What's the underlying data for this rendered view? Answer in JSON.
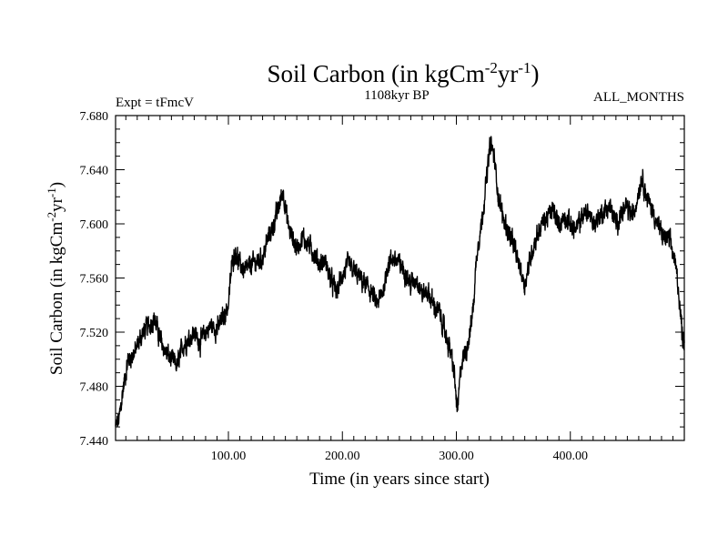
{
  "chart_data": {
    "type": "line",
    "title": "Soil Carbon (in kgCm",
    "title_sup1": "-2",
    "title_mid": "yr",
    "title_sup2": "-1",
    "title_end": ")",
    "subtitle_left": "Expt = tFmcV",
    "subtitle_center": "1108kyr BP",
    "subtitle_right": "ALL_MONTHS",
    "xlabel": "Time (in years since start)",
    "ylabel": "Soil Carbon (in kgCm",
    "ylabel_sup1": "-2",
    "ylabel_mid": "yr",
    "ylabel_sup2": "-1",
    "ylabel_end": ")",
    "xlim": [
      1,
      500
    ],
    "ylim": [
      7.44,
      7.68
    ],
    "xticks": [
      100,
      200,
      300,
      400
    ],
    "xtick_labels": [
      "100.00",
      "200.00",
      "300.00",
      "400.00"
    ],
    "yticks": [
      7.44,
      7.48,
      7.52,
      7.56,
      7.6,
      7.64,
      7.68
    ],
    "ytick_labels": [
      "7.440",
      "7.480",
      "7.520",
      "7.560",
      "7.600",
      "7.640",
      "7.680"
    ],
    "series_color": "#000000",
    "anchors": [
      [
        1,
        7.45
      ],
      [
        4,
        7.455
      ],
      [
        8,
        7.48
      ],
      [
        12,
        7.5
      ],
      [
        18,
        7.505
      ],
      [
        25,
        7.52
      ],
      [
        30,
        7.525
      ],
      [
        35,
        7.53
      ],
      [
        40,
        7.515
      ],
      [
        45,
        7.505
      ],
      [
        50,
        7.5
      ],
      [
        55,
        7.495
      ],
      [
        60,
        7.51
      ],
      [
        65,
        7.515
      ],
      [
        70,
        7.52
      ],
      [
        75,
        7.512
      ],
      [
        80,
        7.52
      ],
      [
        85,
        7.525
      ],
      [
        90,
        7.522
      ],
      [
        95,
        7.53
      ],
      [
        100,
        7.54
      ],
      [
        103,
        7.57
      ],
      [
        106,
        7.58
      ],
      [
        110,
        7.57
      ],
      [
        115,
        7.565
      ],
      [
        120,
        7.57
      ],
      [
        125,
        7.572
      ],
      [
        130,
        7.575
      ],
      [
        135,
        7.59
      ],
      [
        140,
        7.6
      ],
      [
        145,
        7.615
      ],
      [
        148,
        7.625
      ],
      [
        152,
        7.6
      ],
      [
        156,
        7.59
      ],
      [
        160,
        7.582
      ],
      [
        165,
        7.59
      ],
      [
        170,
        7.585
      ],
      [
        175,
        7.578
      ],
      [
        180,
        7.57
      ],
      [
        185,
        7.572
      ],
      [
        190,
        7.558
      ],
      [
        195,
        7.55
      ],
      [
        200,
        7.562
      ],
      [
        205,
        7.57
      ],
      [
        210,
        7.565
      ],
      [
        215,
        7.56
      ],
      [
        220,
        7.555
      ],
      [
        225,
        7.55
      ],
      [
        230,
        7.54
      ],
      [
        235,
        7.548
      ],
      [
        240,
        7.57
      ],
      [
        245,
        7.575
      ],
      [
        250,
        7.57
      ],
      [
        255,
        7.565
      ],
      [
        260,
        7.555
      ],
      [
        265,
        7.56
      ],
      [
        270,
        7.548
      ],
      [
        275,
        7.55
      ],
      [
        280,
        7.54
      ],
      [
        285,
        7.535
      ],
      [
        290,
        7.52
      ],
      [
        295,
        7.505
      ],
      [
        298,
        7.49
      ],
      [
        301,
        7.46
      ],
      [
        304,
        7.495
      ],
      [
        308,
        7.505
      ],
      [
        312,
        7.52
      ],
      [
        315,
        7.54
      ],
      [
        318,
        7.58
      ],
      [
        322,
        7.6
      ],
      [
        326,
        7.63
      ],
      [
        330,
        7.66
      ],
      [
        333,
        7.65
      ],
      [
        337,
        7.62
      ],
      [
        341,
        7.605
      ],
      [
        345,
        7.595
      ],
      [
        350,
        7.585
      ],
      [
        355,
        7.57
      ],
      [
        360,
        7.555
      ],
      [
        365,
        7.575
      ],
      [
        370,
        7.59
      ],
      [
        375,
        7.6
      ],
      [
        380,
        7.605
      ],
      [
        385,
        7.61
      ],
      [
        390,
        7.6
      ],
      [
        395,
        7.605
      ],
      [
        400,
        7.6
      ],
      [
        405,
        7.595
      ],
      [
        410,
        7.605
      ],
      [
        415,
        7.61
      ],
      [
        420,
        7.6
      ],
      [
        425,
        7.605
      ],
      [
        430,
        7.61
      ],
      [
        435,
        7.612
      ],
      [
        440,
        7.6
      ],
      [
        445,
        7.608
      ],
      [
        450,
        7.612
      ],
      [
        455,
        7.605
      ],
      [
        460,
        7.625
      ],
      [
        463,
        7.635
      ],
      [
        467,
        7.62
      ],
      [
        472,
        7.61
      ],
      [
        477,
        7.598
      ],
      [
        482,
        7.59
      ],
      [
        487,
        7.588
      ],
      [
        491,
        7.575
      ],
      [
        494,
        7.56
      ],
      [
        496,
        7.54
      ],
      [
        498,
        7.52
      ],
      [
        500,
        7.512
      ]
    ]
  }
}
